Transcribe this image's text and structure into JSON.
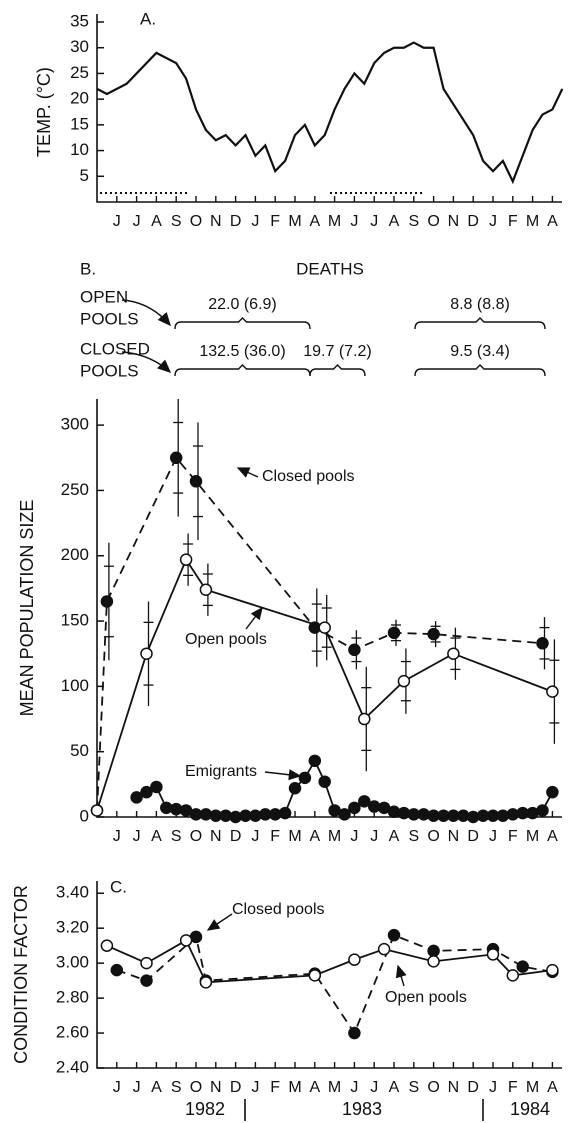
{
  "chart_data": [
    {
      "type": "line",
      "panel_label": "A.",
      "ylabel": "TEMP. (°C)",
      "categories": [
        null,
        null,
        "J",
        null,
        "J",
        null,
        "A",
        null,
        "S",
        null,
        "O",
        null,
        "N",
        null,
        "D",
        null,
        "J",
        null,
        "F",
        null,
        "M",
        null,
        "A",
        null,
        "M",
        null,
        "J",
        null,
        "J",
        null,
        "A",
        null,
        "S",
        null,
        "O",
        null,
        "N",
        null,
        "D",
        null,
        "J",
        null,
        "F",
        null,
        "M",
        null,
        "A",
        null
      ],
      "series": [
        {
          "color": "#111",
          "marker": "none",
          "dash": false,
          "values": [
            22,
            21,
            22,
            23,
            25,
            27,
            29,
            28,
            27,
            24,
            18,
            14,
            12,
            13,
            11,
            13,
            9,
            11,
            6,
            8,
            13,
            15,
            11,
            13,
            18,
            22,
            25,
            23,
            27,
            29,
            30,
            30,
            31,
            30,
            30,
            22,
            19,
            16,
            13,
            8,
            6,
            8,
            4,
            9,
            14,
            17,
            18,
            22
          ]
        }
      ],
      "ylim": [
        0,
        35
      ],
      "yticks": [
        5,
        10,
        15,
        20,
        25,
        30,
        35
      ]
    },
    {
      "type": "line",
      "panel_label": "B.",
      "ylabel": "MEAN POPULATION SIZE",
      "connect_gaps": true,
      "deaths": {
        "title": "DEATHS",
        "rows": [
          {
            "label": [
              "OPEN",
              "POOLS"
            ],
            "entries": [
              "22.0 (6.9)",
              "8.8 (8.8)"
            ]
          },
          {
            "label": [
              "CLOSED",
              "POOLS"
            ],
            "entries": [
              "132.5 (36.0)",
              "19.7 (7.2)",
              "9.5 (3.4)"
            ]
          }
        ]
      },
      "categories": [
        null,
        null,
        "J",
        null,
        "J",
        null,
        "A",
        null,
        "S",
        null,
        "O",
        null,
        "N",
        null,
        "D",
        null,
        "J",
        null,
        "F",
        null,
        "M",
        null,
        "A",
        null,
        "M",
        null,
        "J",
        null,
        "J",
        null,
        "A",
        null,
        "S",
        null,
        "O",
        null,
        "N",
        null,
        "D",
        null,
        "J",
        null,
        "F",
        null,
        "M",
        null,
        "A",
        null
      ],
      "series": [
        {
          "name": "Closed pools",
          "color": "#111",
          "marker": "filled",
          "dash": true,
          "values": [
            5,
            165,
            null,
            null,
            null,
            null,
            null,
            null,
            275,
            null,
            257,
            null,
            null,
            null,
            null,
            null,
            null,
            null,
            null,
            null,
            null,
            null,
            145,
            null,
            null,
            null,
            128,
            null,
            null,
            null,
            141,
            null,
            null,
            null,
            140,
            null,
            null,
            null,
            null,
            null,
            null,
            null,
            null,
            null,
            null,
            133,
            null,
            null
          ],
          "errors": [
            null,
            45,
            null,
            null,
            null,
            null,
            null,
            null,
            45,
            null,
            45,
            null,
            null,
            null,
            null,
            null,
            null,
            null,
            null,
            null,
            null,
            null,
            30,
            null,
            null,
            null,
            15,
            null,
            null,
            null,
            10,
            null,
            null,
            null,
            10,
            null,
            null,
            null,
            null,
            null,
            null,
            null,
            null,
            null,
            null,
            20,
            null,
            null
          ]
        },
        {
          "name": "Open pools",
          "color": "#111",
          "marker": "open",
          "dash": false,
          "values": [
            5,
            null,
            null,
            null,
            null,
            125,
            null,
            null,
            null,
            197,
            null,
            174,
            null,
            null,
            null,
            null,
            null,
            null,
            null,
            null,
            null,
            null,
            null,
            145,
            null,
            null,
            null,
            75,
            null,
            null,
            null,
            104,
            null,
            null,
            null,
            null,
            125,
            null,
            null,
            null,
            null,
            null,
            null,
            null,
            null,
            null,
            96,
            null
          ],
          "errors": [
            null,
            null,
            null,
            null,
            null,
            40,
            null,
            null,
            null,
            20,
            null,
            20,
            null,
            null,
            null,
            null,
            null,
            null,
            null,
            null,
            null,
            null,
            null,
            25,
            null,
            null,
            null,
            40,
            null,
            null,
            null,
            25,
            null,
            null,
            null,
            null,
            20,
            null,
            null,
            null,
            null,
            null,
            null,
            null,
            null,
            null,
            40,
            null
          ]
        },
        {
          "name": "Emigrants",
          "color": "#111",
          "marker": "filled",
          "dash": false,
          "values": [
            null,
            null,
            null,
            null,
            15,
            19,
            23,
            7,
            6,
            5,
            2,
            2,
            1,
            1,
            0,
            1,
            1,
            2,
            2,
            3,
            22,
            30,
            43,
            27,
            5,
            2,
            7,
            12,
            8,
            7,
            4,
            3,
            2,
            2,
            1,
            1,
            1,
            1,
            0,
            1,
            1,
            1,
            2,
            3,
            3,
            5,
            19,
            null
          ]
        }
      ],
      "ylim": [
        0,
        320
      ],
      "yticks": [
        0,
        50,
        100,
        150,
        200,
        250,
        300
      ]
    },
    {
      "type": "line",
      "panel_label": "C.",
      "ylabel": "CONDITION FACTOR",
      "connect_gaps": true,
      "years": [
        "1982",
        "1983",
        "1984"
      ],
      "categories": [
        null,
        null,
        "J",
        null,
        "J",
        null,
        "A",
        null,
        "S",
        null,
        "O",
        null,
        "N",
        null,
        "D",
        null,
        "J",
        null,
        "F",
        null,
        "M",
        null,
        "A",
        null,
        "M",
        null,
        "J",
        null,
        "J",
        null,
        "A",
        null,
        "S",
        null,
        "O",
        null,
        "N",
        null,
        "D",
        null,
        "J",
        null,
        "F",
        null,
        "M",
        null,
        "A",
        null
      ],
      "series": [
        {
          "name": "Closed pools",
          "color": "#111",
          "marker": "filled",
          "dash": true,
          "values": [
            null,
            null,
            2.96,
            null,
            null,
            2.9,
            null,
            null,
            null,
            null,
            3.15,
            2.9,
            null,
            null,
            null,
            null,
            null,
            null,
            null,
            null,
            null,
            null,
            2.94,
            null,
            null,
            null,
            2.6,
            null,
            null,
            null,
            3.16,
            null,
            null,
            null,
            3.07,
            null,
            null,
            null,
            null,
            null,
            3.08,
            null,
            null,
            2.98,
            null,
            null,
            2.95,
            null
          ]
        },
        {
          "name": "Open pools",
          "color": "#111",
          "marker": "open",
          "dash": false,
          "values": [
            null,
            3.1,
            null,
            null,
            null,
            3.0,
            null,
            null,
            null,
            3.13,
            null,
            2.89,
            null,
            null,
            null,
            null,
            null,
            null,
            null,
            null,
            null,
            null,
            2.93,
            null,
            null,
            null,
            3.02,
            null,
            null,
            3.08,
            null,
            null,
            null,
            null,
            3.01,
            null,
            null,
            null,
            null,
            null,
            3.05,
            null,
            2.93,
            null,
            null,
            null,
            2.96,
            null
          ]
        }
      ],
      "ylim": [
        2.4,
        3.47
      ],
      "yticks": [
        {
          "value": 2.4,
          "label": "2.40"
        },
        {
          "value": 2.6,
          "label": "2.60"
        },
        {
          "value": 2.8,
          "label": "2.80"
        },
        {
          "value": 3.0,
          "label": "3.00"
        },
        {
          "value": 3.2,
          "label": "3.20"
        },
        {
          "value": 3.4,
          "label": "3.40"
        }
      ]
    }
  ]
}
